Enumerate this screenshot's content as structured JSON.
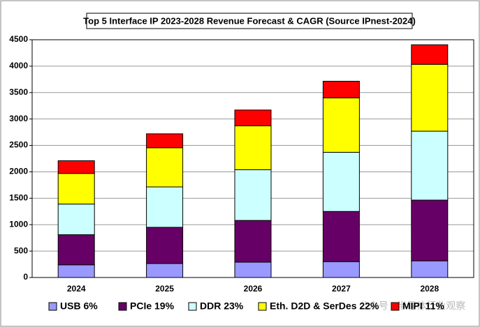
{
  "chart_data": {
    "type": "stacked_bar",
    "title": "Top 5 Interface IP 2023-2028 Revenue Forecast & CAGR  (Source IPnest-2024)",
    "categories": [
      "2024",
      "2025",
      "2026",
      "2027",
      "2028"
    ],
    "series": [
      {
        "name": "USB 6%",
        "color": "#9999ff",
        "values": [
          240,
          265,
          290,
          300,
          315
        ]
      },
      {
        "name": "PCIe 19%",
        "color": "#660066",
        "values": [
          570,
          685,
          790,
          950,
          1150
        ]
      },
      {
        "name": "DDR 23%",
        "color": "#ccffff",
        "values": [
          580,
          765,
          960,
          1120,
          1305
        ]
      },
      {
        "name": "Eth. D2D & SerDes 22%",
        "color": "#ffff00",
        "values": [
          580,
          740,
          830,
          1030,
          1265
        ]
      },
      {
        "name": "MIPI 11%",
        "color": "#ff0000",
        "values": [
          240,
          265,
          300,
          315,
          370
        ]
      }
    ],
    "ylim": [
      0,
      4500
    ],
    "yticks": [
      0,
      500,
      1000,
      1500,
      2000,
      2500,
      3000,
      3500,
      4000,
      4500
    ],
    "grid": true,
    "legend": "bottom",
    "watermark": "公众号 · 半导体行业观察"
  }
}
